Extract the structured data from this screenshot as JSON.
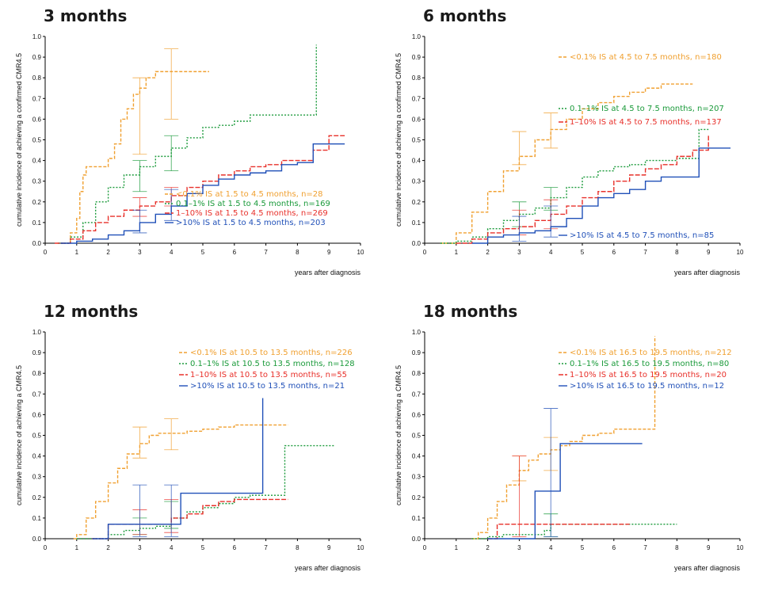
{
  "colors": {
    "lt01": "#f0a030",
    "p01_1": "#1a9a3a",
    "p1_10": "#e8302a",
    "gt10": "#2050b8"
  },
  "chart_data": [
    {
      "type": "line",
      "title": "3 months",
      "ylabel": "cumulative incidence of achieving a confirmed CMR4.5",
      "xlabel": "years after diagnosis",
      "xlim": [
        0,
        10
      ],
      "ylim": [
        0,
        1.0
      ],
      "xticks": [
        "0",
        "1",
        "2",
        "3",
        "4",
        "5",
        "6",
        "7",
        "8",
        "9",
        "10"
      ],
      "yticks": [
        "0.0",
        "0.1",
        "0.2",
        "0.3",
        "0.4",
        "0.5",
        "0.6",
        "0.7",
        "0.8",
        "0.9",
        "1.0"
      ],
      "series": [
        {
          "name": "<0.1% IS at 1.5 to 4.5 months, n=28",
          "color": "lt01",
          "dash": "4,2",
          "x": [
            0.5,
            0.8,
            1.0,
            1.1,
            1.2,
            1.3,
            1.5,
            1.8,
            2.0,
            2.2,
            2.4,
            2.6,
            2.8,
            3.0,
            3.2,
            3.5,
            3.8,
            4.0,
            5.2
          ],
          "y": [
            0,
            0.05,
            0.12,
            0.25,
            0.33,
            0.37,
            0.37,
            0.37,
            0.41,
            0.48,
            0.6,
            0.65,
            0.72,
            0.75,
            0.8,
            0.83,
            0.83,
            0.83,
            0.83
          ],
          "ci": [
            {
              "x": 3.0,
              "lo": 0.43,
              "hi": 0.8
            },
            {
              "x": 4.0,
              "lo": 0.6,
              "hi": 0.94
            }
          ]
        },
        {
          "name": "0.1–1% IS at 1.5 to 4.5 months, n=169",
          "color": "p01_1",
          "dash": "2,2",
          "x": [
            0.4,
            0.8,
            1.2,
            1.6,
            2.0,
            2.5,
            3.0,
            3.5,
            4.0,
            4.5,
            5.0,
            5.5,
            6.0,
            6.5,
            7.0,
            7.5,
            8.0,
            8.5,
            8.6
          ],
          "y": [
            0,
            0.03,
            0.1,
            0.2,
            0.27,
            0.33,
            0.37,
            0.42,
            0.46,
            0.51,
            0.56,
            0.57,
            0.59,
            0.62,
            0.62,
            0.62,
            0.62,
            0.62,
            0.96
          ],
          "ci": [
            {
              "x": 3.0,
              "lo": 0.25,
              "hi": 0.4
            },
            {
              "x": 4.0,
              "lo": 0.35,
              "hi": 0.52
            }
          ]
        },
        {
          "name": "1–10% IS at 1.5 to 4.5 months, n=269",
          "color": "p1_10",
          "dash": "6,2",
          "x": [
            0.3,
            0.8,
            1.2,
            1.6,
            2.0,
            2.5,
            3.0,
            3.5,
            4.0,
            4.5,
            5.0,
            5.5,
            6.0,
            6.5,
            7.0,
            7.5,
            8.0,
            8.5,
            9.0,
            9.5
          ],
          "y": [
            0,
            0.02,
            0.06,
            0.1,
            0.13,
            0.16,
            0.18,
            0.2,
            0.23,
            0.27,
            0.3,
            0.33,
            0.35,
            0.37,
            0.38,
            0.4,
            0.4,
            0.45,
            0.52,
            0.52
          ],
          "ci": [
            {
              "x": 3.0,
              "lo": 0.13,
              "hi": 0.22
            },
            {
              "x": 4.0,
              "lo": 0.18,
              "hi": 0.27
            }
          ]
        },
        {
          "name": ">10% IS at 1.5 to 4.5 months, n=203",
          "color": "gt10",
          "dash": "",
          "x": [
            0.5,
            1.0,
            1.5,
            2.0,
            2.5,
            3.0,
            3.5,
            4.0,
            4.5,
            5.0,
            5.5,
            6.0,
            6.5,
            7.0,
            7.5,
            8.0,
            8.5,
            9.0,
            9.5
          ],
          "y": [
            0,
            0.01,
            0.02,
            0.04,
            0.06,
            0.1,
            0.14,
            0.18,
            0.24,
            0.28,
            0.31,
            0.33,
            0.34,
            0.35,
            0.38,
            0.39,
            0.48,
            0.48,
            0.48
          ],
          "ci": [
            {
              "x": 3.0,
              "lo": 0.05,
              "hi": 0.16
            },
            {
              "x": 4.0,
              "lo": 0.11,
              "hi": 0.26
            }
          ]
        }
      ],
      "legend_position": "lower-right"
    },
    {
      "type": "line",
      "title": "6 months",
      "ylabel": "cumulative incidence of achieving a confirmed CMR4.5",
      "xlabel": "years after diagnosis",
      "xlim": [
        0,
        10
      ],
      "ylim": [
        0,
        1.0
      ],
      "xticks": [
        "0",
        "1",
        "2",
        "3",
        "4",
        "5",
        "6",
        "7",
        "8",
        "9",
        "10"
      ],
      "yticks": [
        "0.0",
        "0.1",
        "0.2",
        "0.3",
        "0.4",
        "0.5",
        "0.6",
        "0.7",
        "0.8",
        "0.9",
        "1.0"
      ],
      "series": [
        {
          "name": "<0.1% IS at 4.5 to 7.5 months, n=180",
          "color": "lt01",
          "dash": "4,2",
          "x": [
            0.5,
            1.0,
            1.5,
            2.0,
            2.5,
            3.0,
            3.5,
            4.0,
            4.5,
            5.0,
            5.5,
            6.0,
            6.5,
            7.0,
            7.5,
            8.0,
            8.5
          ],
          "y": [
            0,
            0.05,
            0.15,
            0.25,
            0.35,
            0.42,
            0.5,
            0.55,
            0.6,
            0.65,
            0.68,
            0.71,
            0.73,
            0.75,
            0.77,
            0.77,
            0.77
          ],
          "ci": [
            {
              "x": 3.0,
              "lo": 0.38,
              "hi": 0.54
            },
            {
              "x": 4.0,
              "lo": 0.46,
              "hi": 0.63
            }
          ]
        },
        {
          "name": "0.1–1% IS at 4.5 to 7.5 months, n=207",
          "color": "p01_1",
          "dash": "2,2",
          "x": [
            0.5,
            1.0,
            1.5,
            2.0,
            2.5,
            3.0,
            3.5,
            4.0,
            4.5,
            5.0,
            5.5,
            6.0,
            6.5,
            7.0,
            7.5,
            8.0,
            8.7,
            9.0
          ],
          "y": [
            0,
            0.01,
            0.03,
            0.07,
            0.11,
            0.14,
            0.17,
            0.22,
            0.27,
            0.32,
            0.35,
            0.37,
            0.38,
            0.4,
            0.4,
            0.41,
            0.55,
            0.55
          ],
          "ci": [
            {
              "x": 3.0,
              "lo": 0.08,
              "hi": 0.2
            },
            {
              "x": 4.0,
              "lo": 0.16,
              "hi": 0.27
            }
          ]
        },
        {
          "name": "1–10% IS at 4.5 to 7.5 months, n=137",
          "color": "p1_10",
          "dash": "6,2",
          "x": [
            1.0,
            1.5,
            2.0,
            2.5,
            3.0,
            3.5,
            4.0,
            4.5,
            5.0,
            5.5,
            6.0,
            6.5,
            7.0,
            7.5,
            8.0,
            8.5,
            9.0
          ],
          "y": [
            0,
            0.02,
            0.05,
            0.07,
            0.08,
            0.11,
            0.14,
            0.18,
            0.22,
            0.25,
            0.3,
            0.33,
            0.36,
            0.38,
            0.42,
            0.45,
            0.52
          ],
          "ci": [
            {
              "x": 3.0,
              "lo": 0.04,
              "hi": 0.16
            },
            {
              "x": 4.0,
              "lo": 0.07,
              "hi": 0.21
            }
          ]
        },
        {
          "name": ">10% IS at 4.5 to 7.5 months, n=85",
          "color": "gt10",
          "dash": "",
          "x": [
            1.5,
            2.0,
            2.5,
            3.0,
            3.5,
            4.0,
            4.5,
            5.0,
            5.5,
            6.0,
            6.5,
            7.0,
            7.5,
            8.0,
            8.7,
            9.0,
            9.7
          ],
          "y": [
            0,
            0.03,
            0.04,
            0.05,
            0.06,
            0.08,
            0.12,
            0.18,
            0.22,
            0.24,
            0.26,
            0.3,
            0.32,
            0.32,
            0.46,
            0.46,
            0.46
          ],
          "ci": [
            {
              "x": 3.0,
              "lo": 0.01,
              "hi": 0.13
            },
            {
              "x": 4.0,
              "lo": 0.03,
              "hi": 0.18
            }
          ]
        }
      ],
      "legend_position": "upper-right"
    },
    {
      "type": "line",
      "title": "12 months",
      "ylabel": "cumulative incidence of achieving a CMR4.5",
      "xlabel": "years after diagnosis",
      "xlim": [
        0,
        10
      ],
      "ylim": [
        0,
        1.0
      ],
      "xticks": [
        "0",
        "1",
        "2",
        "3",
        "4",
        "5",
        "6",
        "7",
        "8",
        "9",
        "10"
      ],
      "yticks": [
        "0.0",
        "0.1",
        "0.2",
        "0.3",
        "0.4",
        "0.5",
        "0.6",
        "0.7",
        "0.8",
        "0.9",
        "1.0"
      ],
      "series": [
        {
          "name": "<0.1% IS at 10.5 to 13.5 months, n=226",
          "color": "lt01",
          "dash": "4,2",
          "x": [
            0.9,
            1.0,
            1.3,
            1.6,
            2.0,
            2.3,
            2.6,
            3.0,
            3.3,
            3.6,
            4.0,
            4.5,
            5.0,
            5.5,
            6.0,
            6.5,
            7.0,
            7.7
          ],
          "y": [
            0,
            0.02,
            0.1,
            0.18,
            0.27,
            0.34,
            0.41,
            0.46,
            0.5,
            0.51,
            0.51,
            0.52,
            0.53,
            0.54,
            0.55,
            0.55,
            0.55,
            0.55
          ],
          "ci": [
            {
              "x": 3.0,
              "lo": 0.39,
              "hi": 0.54
            },
            {
              "x": 4.0,
              "lo": 0.43,
              "hi": 0.58
            }
          ]
        },
        {
          "name": "0.1–1% IS at 10.5 to 13.5 months, n=128",
          "color": "p01_1",
          "dash": "2,2",
          "x": [
            1.0,
            2.0,
            2.5,
            3.0,
            3.5,
            4.0,
            4.5,
            5.0,
            5.5,
            6.0,
            6.5,
            7.0,
            7.6,
            8.0,
            9.2
          ],
          "y": [
            0,
            0.02,
            0.04,
            0.05,
            0.06,
            0.1,
            0.13,
            0.15,
            0.17,
            0.2,
            0.21,
            0.21,
            0.45,
            0.45,
            0.45
          ],
          "ci": [
            {
              "x": 3.0,
              "lo": 0.02,
              "hi": 0.1
            },
            {
              "x": 4.0,
              "lo": 0.05,
              "hi": 0.18
            }
          ]
        },
        {
          "name": "1–10% IS at 10.5 to 13.5 months, n=55",
          "color": "p1_10",
          "dash": "6,2",
          "x": [
            1.5,
            2.0,
            2.2,
            2.7,
            3.0,
            3.5,
            4.0,
            4.5,
            5.0,
            5.5,
            6.0,
            6.5,
            7.0,
            7.7
          ],
          "y": [
            0,
            0.07,
            0.07,
            0.07,
            0.07,
            0.07,
            0.1,
            0.12,
            0.16,
            0.18,
            0.19,
            0.19,
            0.19,
            0.19
          ],
          "ci": [
            {
              "x": 3.0,
              "lo": 0.02,
              "hi": 0.14
            },
            {
              "x": 4.0,
              "lo": 0.03,
              "hi": 0.19
            }
          ]
        },
        {
          "name": ">10% IS at 10.5 to 13.5 months, n=21",
          "color": "gt10",
          "dash": "",
          "x": [
            1.5,
            2.0,
            2.5,
            3.0,
            3.5,
            4.0,
            4.3,
            4.5,
            5.0,
            5.5,
            6.0,
            6.5,
            6.9
          ],
          "y": [
            0,
            0.07,
            0.07,
            0.07,
            0.07,
            0.07,
            0.22,
            0.22,
            0.22,
            0.22,
            0.22,
            0.22,
            0.68
          ],
          "ci": [
            {
              "x": 3.0,
              "lo": 0.01,
              "hi": 0.26
            },
            {
              "x": 4.0,
              "lo": 0.01,
              "hi": 0.26
            }
          ]
        }
      ],
      "legend_position": "upper-right"
    },
    {
      "type": "line",
      "title": "18 months",
      "ylabel": "cumulative incidence of achieving a CMR4.5",
      "xlabel": "years after diagnosis",
      "xlim": [
        0,
        10
      ],
      "ylim": [
        0,
        1.0
      ],
      "xticks": [
        "0",
        "1",
        "2",
        "3",
        "4",
        "5",
        "6",
        "7",
        "8",
        "9",
        "10"
      ],
      "yticks": [
        "0.0",
        "0.1",
        "0.2",
        "0.3",
        "0.4",
        "0.5",
        "0.6",
        "0.7",
        "0.8",
        "0.9",
        "1.0"
      ],
      "series": [
        {
          "name": "<0.1% IS at 16.5 to 19.5 months, n=212",
          "color": "lt01",
          "dash": "4,2",
          "x": [
            1.5,
            1.7,
            2.0,
            2.3,
            2.6,
            3.0,
            3.3,
            3.6,
            4.0,
            4.3,
            4.6,
            5.0,
            5.5,
            6.0,
            6.5,
            7.0,
            7.3
          ],
          "y": [
            0,
            0.03,
            0.1,
            0.18,
            0.26,
            0.33,
            0.38,
            0.41,
            0.43,
            0.45,
            0.47,
            0.5,
            0.51,
            0.53,
            0.53,
            0.53,
            0.98
          ],
          "ci": [
            {
              "x": 3.0,
              "lo": 0.28,
              "hi": 0.4
            },
            {
              "x": 4.0,
              "lo": 0.33,
              "hi": 0.49
            }
          ]
        },
        {
          "name": "0.1–1% IS at 16.5 to 19.5 months, n=80",
          "color": "p01_1",
          "dash": "2,2",
          "x": [
            1.5,
            2.0,
            2.5,
            3.0,
            3.5,
            3.8,
            4.0,
            4.5,
            5.0,
            6.0,
            7.0,
            8.0
          ],
          "y": [
            0,
            0.01,
            0.02,
            0.02,
            0.02,
            0.04,
            0.07,
            0.07,
            0.07,
            0.07,
            0.07,
            0.07
          ],
          "ci": [
            {
              "x": 4.0,
              "lo": 0.01,
              "hi": 0.12
            }
          ]
        },
        {
          "name": "1–10% IS at 16.5 to 19.5 months, n=20",
          "color": "p1_10",
          "dash": "6,2",
          "x": [
            2.0,
            2.3,
            3.0,
            3.5,
            4.0,
            4.5,
            5.0,
            5.5,
            6.0,
            6.5
          ],
          "y": [
            0,
            0.07,
            0.07,
            0.07,
            0.07,
            0.07,
            0.07,
            0.07,
            0.07,
            0.07
          ],
          "ci": [
            {
              "x": 3.0,
              "lo": 0.01,
              "hi": 0.4
            }
          ]
        },
        {
          "name": ">10% IS at 16.5 to 19.5 months, n=12",
          "color": "gt10",
          "dash": "",
          "x": [
            2.0,
            3.0,
            3.5,
            4.0,
            4.3,
            5.0,
            6.0,
            6.9
          ],
          "y": [
            0,
            0,
            0.23,
            0.23,
            0.46,
            0.46,
            0.46,
            0.46
          ],
          "ci": [
            {
              "x": 4.0,
              "lo": 0.01,
              "hi": 0.63
            }
          ]
        }
      ],
      "legend_position": "upper-right"
    }
  ]
}
